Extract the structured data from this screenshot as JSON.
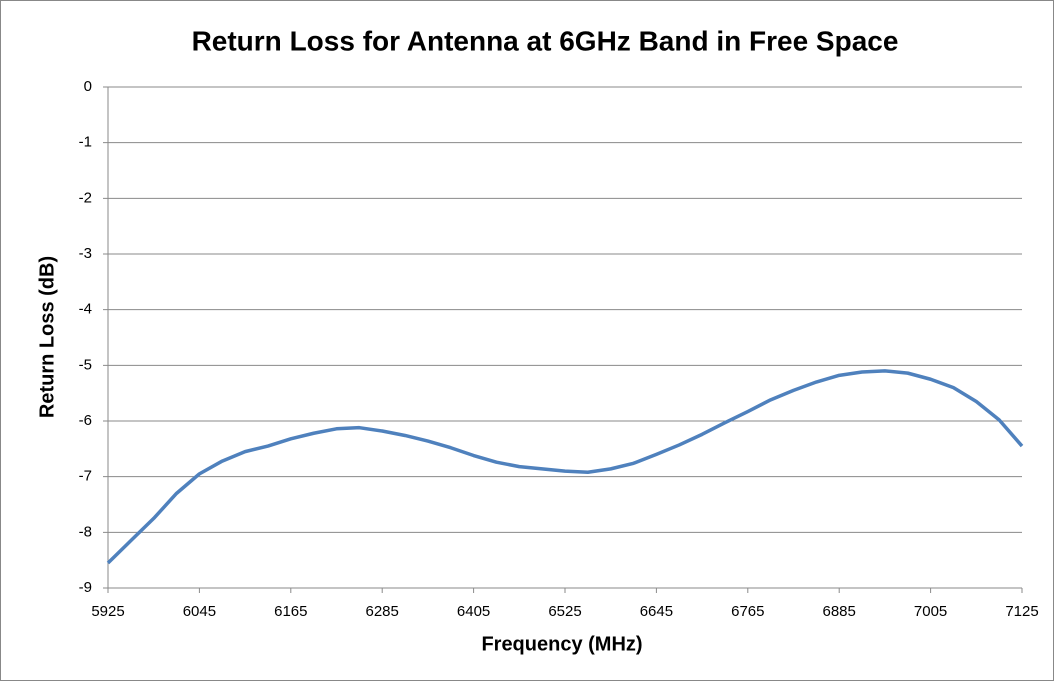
{
  "chart_data": {
    "type": "line",
    "title": "Return Loss for Antenna at 6GHz Band in Free Space",
    "xlabel": "Frequency  (MHz)",
    "ylabel": "Return Loss (dB)",
    "series": [
      {
        "name": "Return Loss",
        "color": "#4f81bd",
        "x": [
          5925,
          5955,
          5985,
          6015,
          6045,
          6075,
          6105,
          6135,
          6165,
          6195,
          6225,
          6255,
          6285,
          6315,
          6345,
          6375,
          6405,
          6435,
          6465,
          6495,
          6525,
          6555,
          6585,
          6615,
          6645,
          6675,
          6705,
          6735,
          6765,
          6795,
          6825,
          6855,
          6885,
          6915,
          6945,
          6975,
          7005,
          7035,
          7065,
          7095,
          7125
        ],
        "values": [
          -8.55,
          -8.15,
          -7.75,
          -7.3,
          -6.95,
          -6.72,
          -6.55,
          -6.45,
          -6.32,
          -6.22,
          -6.14,
          -6.12,
          -6.18,
          -6.26,
          -6.36,
          -6.48,
          -6.62,
          -6.74,
          -6.82,
          -6.86,
          -6.9,
          -6.92,
          -6.86,
          -6.76,
          -6.6,
          -6.43,
          -6.24,
          -6.03,
          -5.83,
          -5.62,
          -5.45,
          -5.3,
          -5.18,
          -5.12,
          -5.1,
          -5.14,
          -5.25,
          -5.4,
          -5.65,
          -5.98,
          -6.45
        ]
      }
    ],
    "xlim": [
      5925,
      7125
    ],
    "xticks": [
      5925,
      6045,
      6165,
      6285,
      6405,
      6525,
      6645,
      6765,
      6885,
      7005,
      7125
    ],
    "ylim": [
      -9,
      0
    ],
    "yticks": [
      -9,
      -8,
      -7,
      -6,
      -5,
      -4,
      -3,
      -2,
      -1,
      0
    ],
    "grid": true
  }
}
